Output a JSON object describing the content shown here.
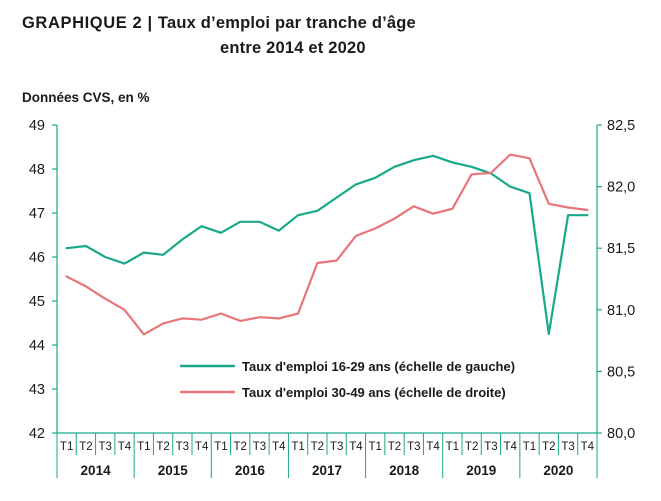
{
  "title": {
    "prefix": "GRAPHIQUE 2 |",
    "line1": "Taux d’emploi par tranche d’âge",
    "line2": "entre 2014 et 2020"
  },
  "unit_note": "Données CVS, en %",
  "colors": {
    "series_16_29": "#1aa88a",
    "series_30_49": "#e8757a",
    "axis": "#1aa88a",
    "text": "#1a1a1a"
  },
  "chart_data": {
    "type": "line",
    "title": "Taux d’emploi par tranche d’âge entre 2014 et 2020",
    "subtitle": "Données CVS, en %",
    "xlabel": "",
    "ylabel_left": "",
    "ylabel_right": "",
    "quarter_labels": [
      "T1",
      "T2",
      "T3",
      "T4",
      "T1",
      "T2",
      "T3",
      "T4",
      "T1",
      "T2",
      "T3",
      "T4",
      "T1",
      "T2",
      "T3",
      "T4",
      "T1",
      "T2",
      "T3",
      "T4",
      "T1",
      "T2",
      "T3",
      "T4",
      "T1",
      "T2",
      "T3",
      "T4"
    ],
    "year_labels": [
      "2014",
      "2015",
      "2016",
      "2017",
      "2018",
      "2019",
      "2020"
    ],
    "ylim_left": [
      42,
      49
    ],
    "yticks_left": [
      "42",
      "43",
      "44",
      "45",
      "46",
      "47",
      "48",
      "49"
    ],
    "ylim_right": [
      80.0,
      82.5
    ],
    "yticks_right": [
      "80,0",
      "80,5",
      "81,0",
      "81,5",
      "82,0",
      "82,5"
    ],
    "grid": false,
    "legend_position": "bottom-right inside plot",
    "series": [
      {
        "name": "Taux d'emploi 16-29 ans (échelle de gauche)",
        "axis": "left",
        "values": [
          46.2,
          46.25,
          46.0,
          45.85,
          46.1,
          46.05,
          46.4,
          46.7,
          46.55,
          46.8,
          46.8,
          46.6,
          46.95,
          47.05,
          47.35,
          47.65,
          47.8,
          48.05,
          48.2,
          48.3,
          48.15,
          48.05,
          47.9,
          47.6,
          47.45,
          44.25,
          46.95,
          46.95
        ]
      },
      {
        "name": "Taux d'emploi 30-49 ans (échelle de droite)",
        "axis": "right",
        "values": [
          81.27,
          81.19,
          81.09,
          81.0,
          80.8,
          80.89,
          80.93,
          80.92,
          80.97,
          80.91,
          80.94,
          80.93,
          80.97,
          81.38,
          81.4,
          81.6,
          81.66,
          81.74,
          81.84,
          81.78,
          81.82,
          82.1,
          82.11,
          82.26,
          82.23,
          81.86,
          81.83,
          81.81
        ]
      }
    ]
  }
}
